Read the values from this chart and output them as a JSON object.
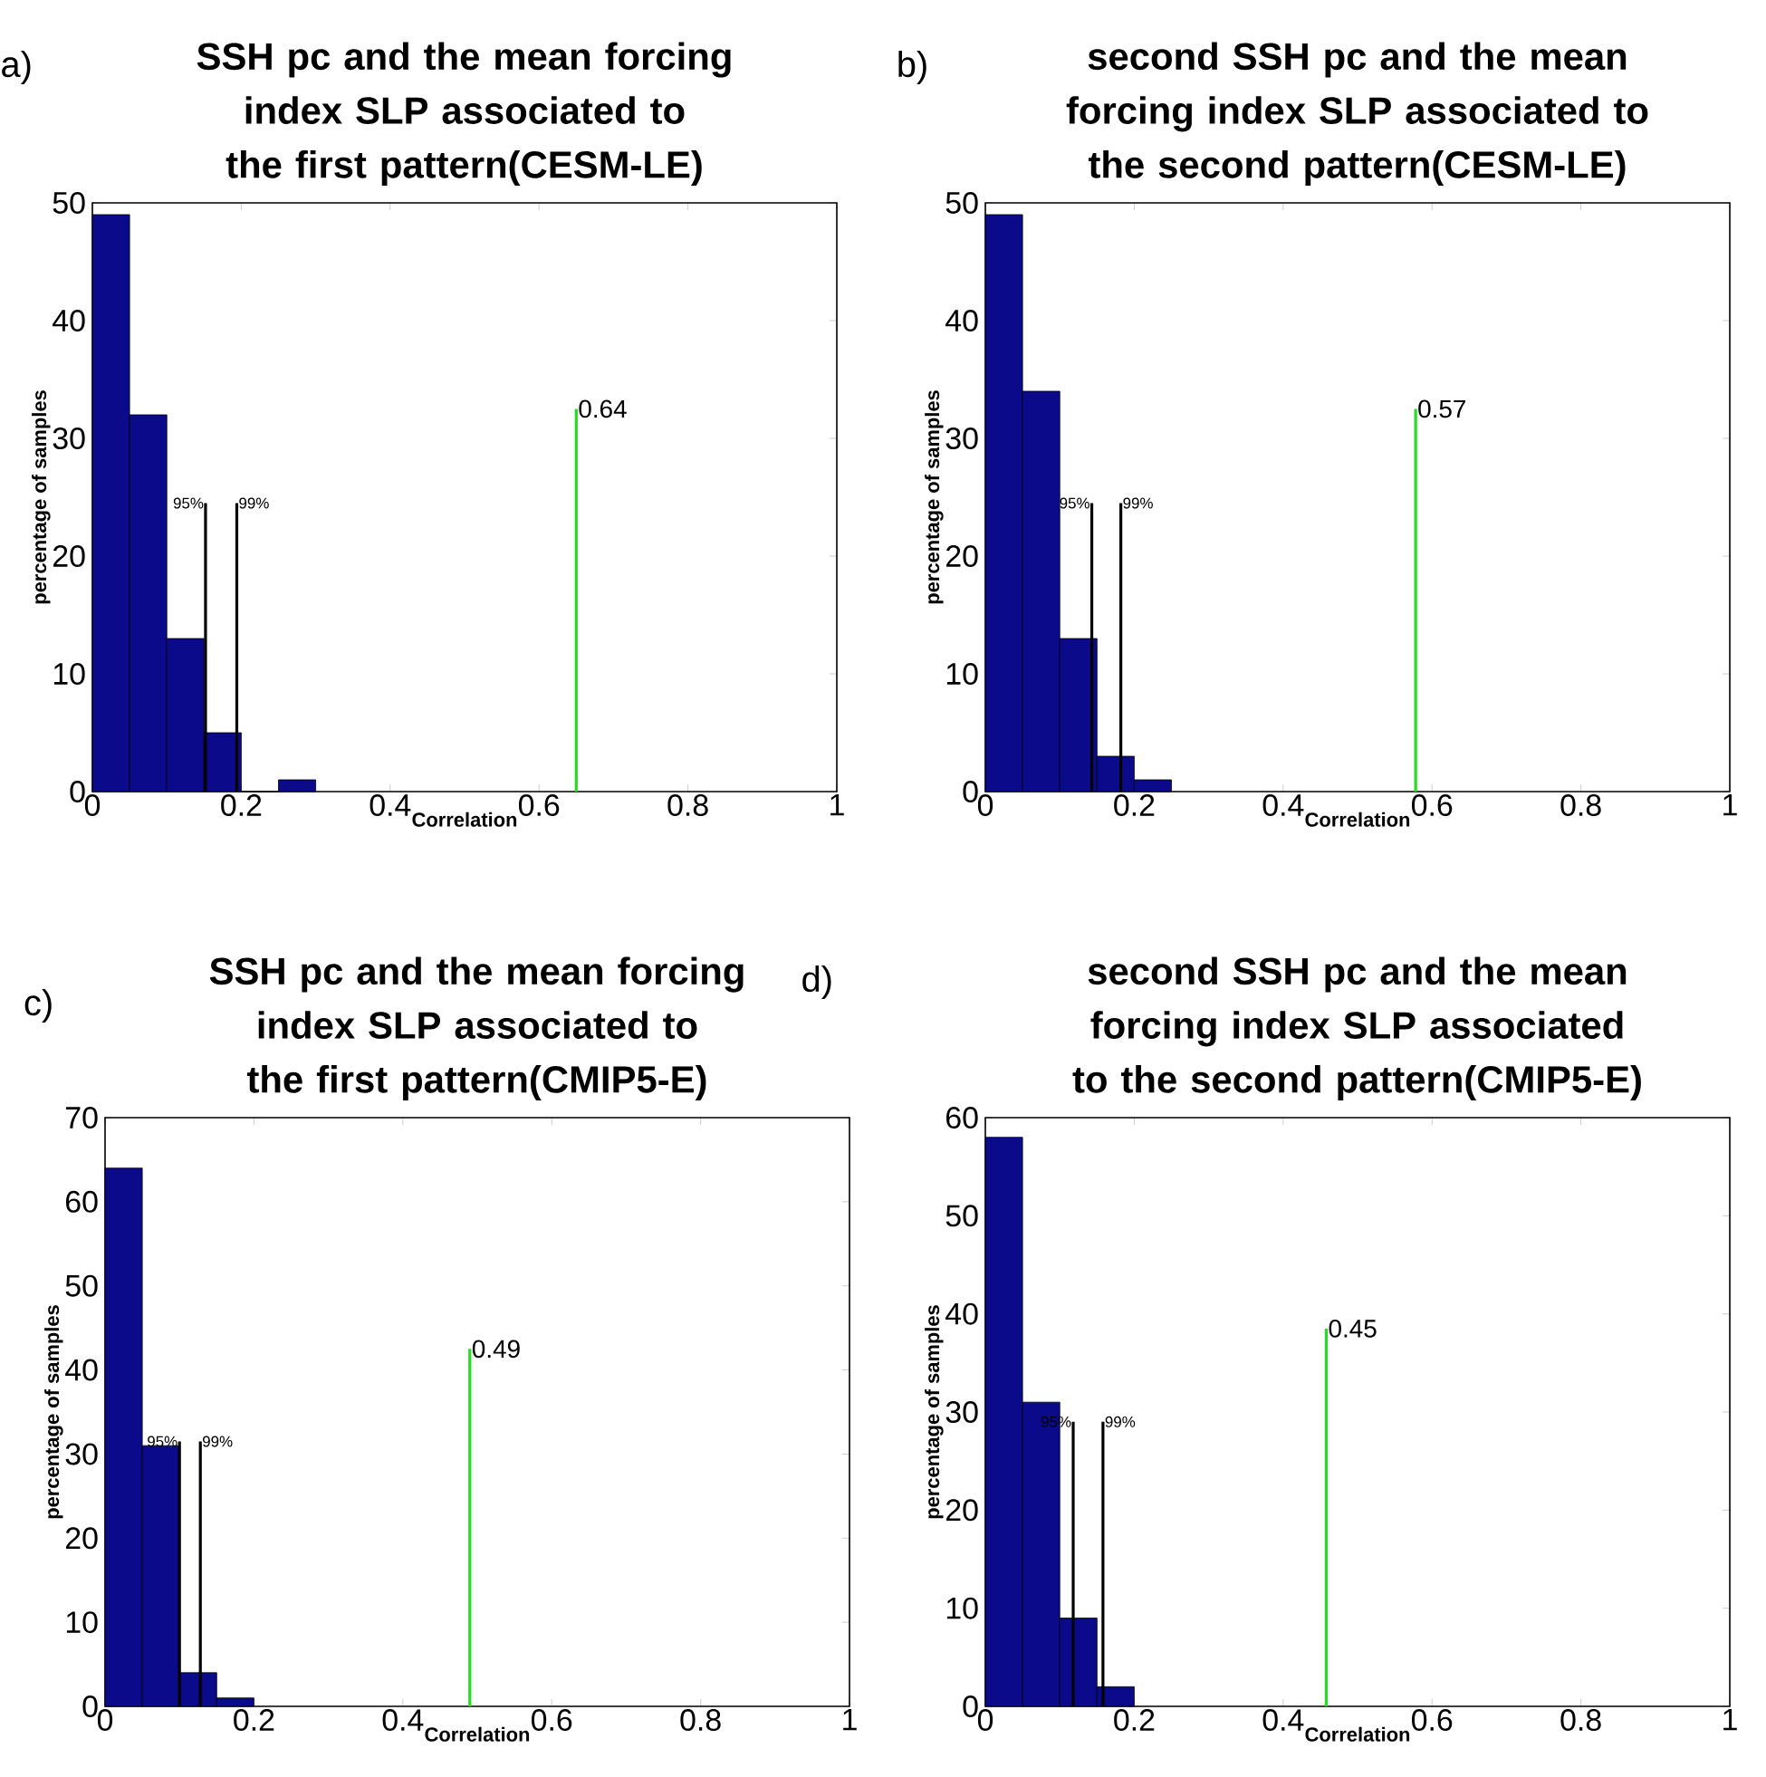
{
  "chart_data": [
    {
      "type": "histogram",
      "title": "SSH pc and the mean forcing index SLP  associated to the first pattern(CESM-LE)",
      "xlabel": "Correlation",
      "ylabel": "percentage of samples",
      "bins": [
        0,
        0.05,
        0.1,
        0.15,
        0.2,
        0.25,
        0.3
      ],
      "values": [
        49,
        32,
        13,
        5,
        0,
        1
      ],
      "color": "#0a0a8a",
      "xlim": [
        0,
        1
      ],
      "ylim": [
        0,
        50
      ],
      "xticks": [
        0,
        0.2,
        0.4,
        0.6,
        0.8,
        1
      ],
      "yticks": [
        0,
        10,
        20,
        30,
        40,
        50
      ],
      "grid": false,
      "series": [
        {
          "type": "line",
          "color": "#000000",
          "x": [
            0.152,
            0.152
          ],
          "values": [
            0,
            24.5
          ]
        },
        {
          "type": "line",
          "color": "#000000",
          "x": [
            0.194,
            0.194
          ],
          "values": [
            0,
            24.5
          ]
        },
        {
          "type": "line",
          "color": "#22dd22",
          "x": [
            0.65,
            0.65
          ],
          "values": [
            0,
            32.5
          ]
        }
      ],
      "annotations": [
        "a)",
        {
          "text": "95%",
          "x": 0.152,
          "y": 24.5
        },
        {
          "text": "99%",
          "x": 0.194,
          "y": 24.5
        },
        {
          "text": "0.64",
          "x": 0.65,
          "y": 32.5
        }
      ]
    },
    {
      "type": "histogram",
      "title": "second SSH pc and the mean forcing index SLP associated to the second pattern(CESM-LE)",
      "xlabel": "Correlation",
      "ylabel": "percentage of samples",
      "bins": [
        0,
        0.05,
        0.1,
        0.15,
        0.2,
        0.25
      ],
      "values": [
        49,
        34,
        13,
        3,
        1
      ],
      "color": "#0a0a8a",
      "xlim": [
        0,
        1
      ],
      "ylim": [
        0,
        50
      ],
      "xticks": [
        0,
        0.2,
        0.4,
        0.6,
        0.8,
        1
      ],
      "yticks": [
        0,
        10,
        20,
        30,
        40,
        50
      ],
      "grid": false,
      "series": [
        {
          "type": "line",
          "color": "#000000",
          "x": [
            0.143,
            0.143
          ],
          "values": [
            0,
            24.5
          ]
        },
        {
          "type": "line",
          "color": "#000000",
          "x": [
            0.182,
            0.182
          ],
          "values": [
            0,
            24.5
          ]
        },
        {
          "type": "line",
          "color": "#22dd22",
          "x": [
            0.578,
            0.578
          ],
          "values": [
            0,
            32.5
          ]
        }
      ],
      "annotations": [
        "b)",
        {
          "text": "95%",
          "x": 0.143,
          "y": 24.5
        },
        {
          "text": "99%",
          "x": 0.182,
          "y": 24.5
        },
        {
          "text": "0.57",
          "x": 0.578,
          "y": 32.5
        }
      ]
    },
    {
      "type": "histogram",
      "title": "SSH pc and the mean forcing index SLP  associated to the first pattern(CMIP5-E)",
      "xlabel": "Correlation",
      "ylabel": "percentage of samples",
      "bins": [
        0,
        0.05,
        0.1,
        0.15,
        0.2
      ],
      "values": [
        64,
        31,
        4,
        1
      ],
      "color": "#0a0a8a",
      "xlim": [
        0,
        1
      ],
      "ylim": [
        0,
        70
      ],
      "xticks": [
        0,
        0.2,
        0.4,
        0.6,
        0.8,
        1
      ],
      "yticks": [
        0,
        10,
        20,
        30,
        40,
        50,
        60,
        70
      ],
      "grid": false,
      "series": [
        {
          "type": "line",
          "color": "#000000",
          "x": [
            0.1,
            0.1
          ],
          "values": [
            0,
            31.5
          ]
        },
        {
          "type": "line",
          "color": "#000000",
          "x": [
            0.128,
            0.128
          ],
          "values": [
            0,
            31.5
          ]
        },
        {
          "type": "line",
          "color": "#22dd22",
          "x": [
            0.49,
            0.49
          ],
          "values": [
            0,
            42.5
          ]
        }
      ],
      "annotations": [
        "c)",
        {
          "text": "95%",
          "x": 0.1,
          "y": 31.5
        },
        {
          "text": "99%",
          "x": 0.128,
          "y": 31.5
        },
        {
          "text": "0.49",
          "x": 0.49,
          "y": 42.5
        }
      ]
    },
    {
      "type": "histogram",
      "title": "second SSH pc and the mean forcing index SLP associated to the second pattern(CMIP5-E)",
      "xlabel": "Correlation",
      "ylabel": "percentage of samples",
      "bins": [
        0,
        0.05,
        0.1,
        0.15,
        0.2
      ],
      "values": [
        58,
        31,
        9,
        2
      ],
      "color": "#0a0a8a",
      "xlim": [
        0,
        1
      ],
      "ylim": [
        0,
        60
      ],
      "xticks": [
        0,
        0.2,
        0.4,
        0.6,
        0.8,
        1
      ],
      "yticks": [
        0,
        10,
        20,
        30,
        40,
        50,
        60
      ],
      "grid": false,
      "series": [
        {
          "type": "line",
          "color": "#000000",
          "x": [
            0.118,
            0.118
          ],
          "values": [
            0,
            29
          ]
        },
        {
          "type": "line",
          "color": "#000000",
          "x": [
            0.158,
            0.158
          ],
          "values": [
            0,
            29
          ]
        },
        {
          "type": "line",
          "color": "#22dd22",
          "x": [
            0.458,
            0.458
          ],
          "values": [
            0,
            38.5
          ]
        }
      ],
      "annotations": [
        "d)",
        {
          "text": "95%",
          "x": 0.118,
          "y": 29
        },
        {
          "text": "99%",
          "x": 0.158,
          "y": 29
        },
        {
          "text": "0.45",
          "x": 0.458,
          "y": 38.5
        }
      ]
    }
  ]
}
